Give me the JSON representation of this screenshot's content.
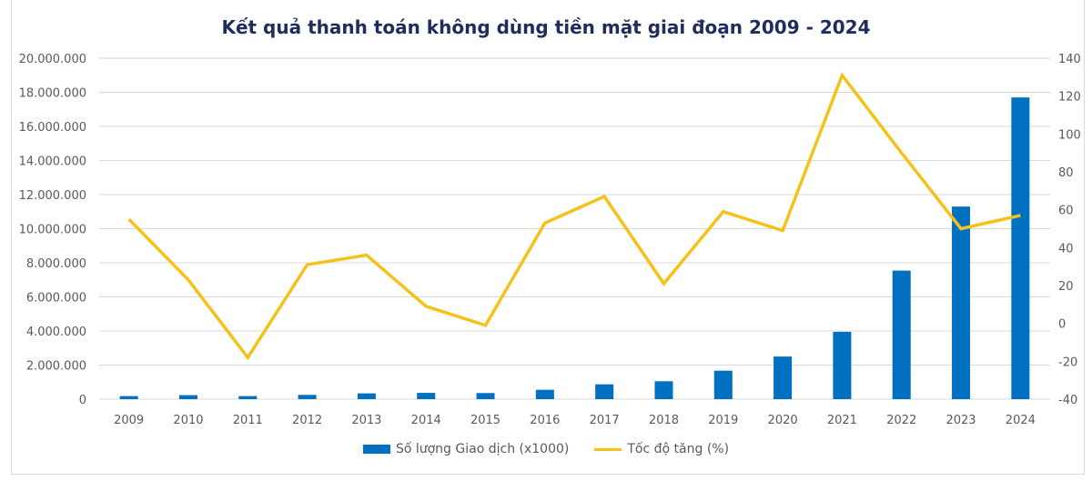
{
  "chart_data": {
    "type": "bar+line",
    "title": "Kết quả thanh toán không dùng tiền mặt giai đoạn 2009 - 2024",
    "categories": [
      "2009",
      "2010",
      "2011",
      "2012",
      "2013",
      "2014",
      "2015",
      "2016",
      "2017",
      "2018",
      "2019",
      "2020",
      "2021",
      "2022",
      "2023",
      "2024"
    ],
    "series": [
      {
        "name": "Số lượng Giao dịch (x1000)",
        "type": "bar",
        "axis": "left",
        "color": "#0070C0",
        "values": [
          180000,
          235000,
          180000,
          250000,
          340000,
          370000,
          360000,
          550000,
          870000,
          1050000,
          1670000,
          2500000,
          3950000,
          7540000,
          11300000,
          17700000
        ]
      },
      {
        "name": "Tốc độ tăng (%)",
        "type": "line",
        "axis": "right",
        "color": "#F5C11B",
        "values": [
          55,
          23,
          -18,
          31,
          36,
          9,
          -1,
          53,
          67,
          21,
          59,
          49,
          131,
          90,
          50,
          57
        ]
      }
    ],
    "left_axis": {
      "ylim": [
        0,
        20000000
      ],
      "ticks": [
        "0",
        "2.000.000",
        "4.000.000",
        "6.000.000",
        "8.000.000",
        "10.000.000",
        "12.000.000",
        "14.000.000",
        "16.000.000",
        "18.000.000",
        "20.000.000"
      ]
    },
    "right_axis": {
      "ylim": [
        -40,
        140
      ],
      "ticks": [
        "-40",
        "-20",
        "0",
        "20",
        "40",
        "60",
        "80",
        "100",
        "120",
        "140"
      ]
    },
    "grid": true,
    "legend_position": "bottom"
  }
}
